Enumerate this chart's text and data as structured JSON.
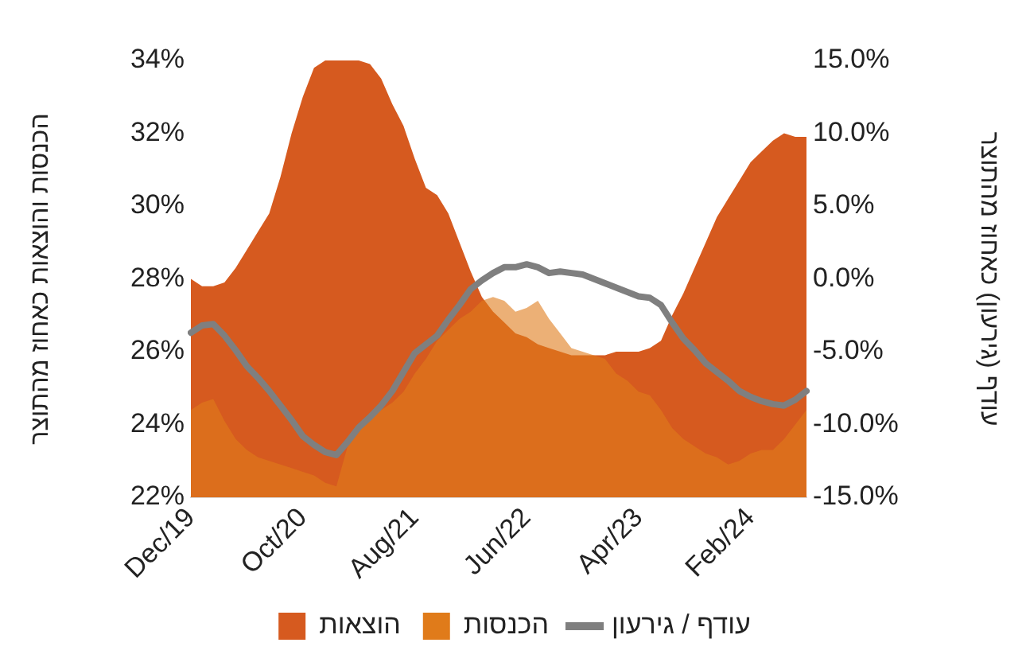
{
  "chart_data": {
    "type": "area",
    "ylabel": "הכנסות והוצאות כאחוז מהתוצר",
    "y2label": "עודף (גירעון) כאחוז מהתוצר",
    "categories": [
      "Dec/19",
      null,
      null,
      null,
      null,
      null,
      null,
      null,
      null,
      null,
      "Oct/20",
      null,
      null,
      null,
      null,
      null,
      null,
      null,
      null,
      null,
      "Aug/21",
      null,
      null,
      null,
      null,
      null,
      null,
      null,
      null,
      null,
      "Jun/22",
      null,
      null,
      null,
      null,
      null,
      null,
      null,
      null,
      null,
      "Apr/23",
      null,
      null,
      null,
      null,
      null,
      null,
      null,
      null,
      null,
      "Feb/24",
      null,
      null,
      null,
      null,
      null
    ],
    "series": [
      {
        "name": "הוצאות",
        "color": "#d65a1f",
        "values": [
          28.0,
          27.8,
          27.8,
          27.9,
          28.3,
          28.8,
          29.3,
          29.8,
          30.8,
          32.0,
          33.0,
          33.8,
          34.0,
          34.0,
          34.0,
          34.0,
          33.9,
          33.5,
          32.8,
          32.2,
          31.3,
          30.5,
          30.3,
          29.8,
          29.0,
          28.2,
          27.5,
          27.1,
          26.8,
          26.5,
          26.4,
          26.2,
          26.1,
          26.0,
          25.9,
          25.9,
          25.9,
          25.9,
          26.0,
          26.0,
          26.0,
          26.1,
          26.3,
          27.0,
          27.6,
          28.3,
          29.0,
          29.7,
          30.2,
          30.7,
          31.2,
          31.5,
          31.8,
          32.0,
          31.9,
          31.9
        ]
      },
      {
        "name": "הכנסות",
        "color": "#e07b1a",
        "values": [
          24.4,
          24.6,
          24.7,
          24.1,
          23.6,
          23.3,
          23.1,
          23.0,
          22.9,
          22.8,
          22.7,
          22.6,
          22.4,
          22.3,
          23.4,
          23.9,
          24.3,
          24.4,
          24.6,
          24.9,
          25.4,
          25.8,
          26.3,
          26.6,
          26.9,
          27.1,
          27.4,
          27.5,
          27.4,
          27.1,
          27.2,
          27.4,
          26.9,
          26.5,
          26.1,
          26.0,
          25.9,
          25.8,
          25.4,
          25.2,
          24.9,
          24.8,
          24.4,
          23.9,
          23.6,
          23.4,
          23.2,
          23.1,
          22.9,
          23.0,
          23.2,
          23.3,
          23.3,
          23.6,
          24.0,
          24.4
        ]
      },
      {
        "name": "עודף / גירעון",
        "type": "line",
        "axis": "y2",
        "color": "#7f7f7f",
        "values": [
          -3.7,
          -3.2,
          -3.1,
          -3.9,
          -4.9,
          -6.0,
          -6.8,
          -7.7,
          -8.7,
          -9.7,
          -10.8,
          -11.4,
          -11.9,
          -12.1,
          -11.2,
          -10.2,
          -9.5,
          -8.7,
          -7.7,
          -6.4,
          -5.1,
          -4.5,
          -3.9,
          -2.8,
          -1.8,
          -0.7,
          -0.1,
          0.4,
          0.8,
          0.8,
          1.0,
          0.8,
          0.4,
          0.5,
          0.4,
          0.3,
          0.0,
          -0.3,
          -0.6,
          -0.9,
          -1.2,
          -1.3,
          -1.8,
          -3.0,
          -4.1,
          -4.9,
          -5.8,
          -6.4,
          -7.0,
          -7.7,
          -8.1,
          -8.4,
          -8.6,
          -8.7,
          -8.3,
          -7.7
        ]
      }
    ],
    "ylim": [
      22,
      34
    ],
    "yticks": [
      {
        "value": 22,
        "label": "22%"
      },
      {
        "value": 24,
        "label": "24%"
      },
      {
        "value": 26,
        "label": "26%"
      },
      {
        "value": 28,
        "label": "28%"
      },
      {
        "value": 30,
        "label": "30%"
      },
      {
        "value": 32,
        "label": "32%"
      },
      {
        "value": 34,
        "label": "34%"
      }
    ],
    "y2lim": [
      -15,
      15
    ],
    "y2ticks": [
      {
        "value": -15,
        "label": "-15.0%"
      },
      {
        "value": -10,
        "label": "-10.0%"
      },
      {
        "value": -5,
        "label": "-5.0%"
      },
      {
        "value": 0,
        "label": "0.0%"
      },
      {
        "value": 5,
        "label": "5.0%"
      },
      {
        "value": 10,
        "label": "10.0%"
      },
      {
        "value": 15,
        "label": "15.0%"
      }
    ],
    "legend": "bottom",
    "marker": "none",
    "line_style": "solid"
  }
}
